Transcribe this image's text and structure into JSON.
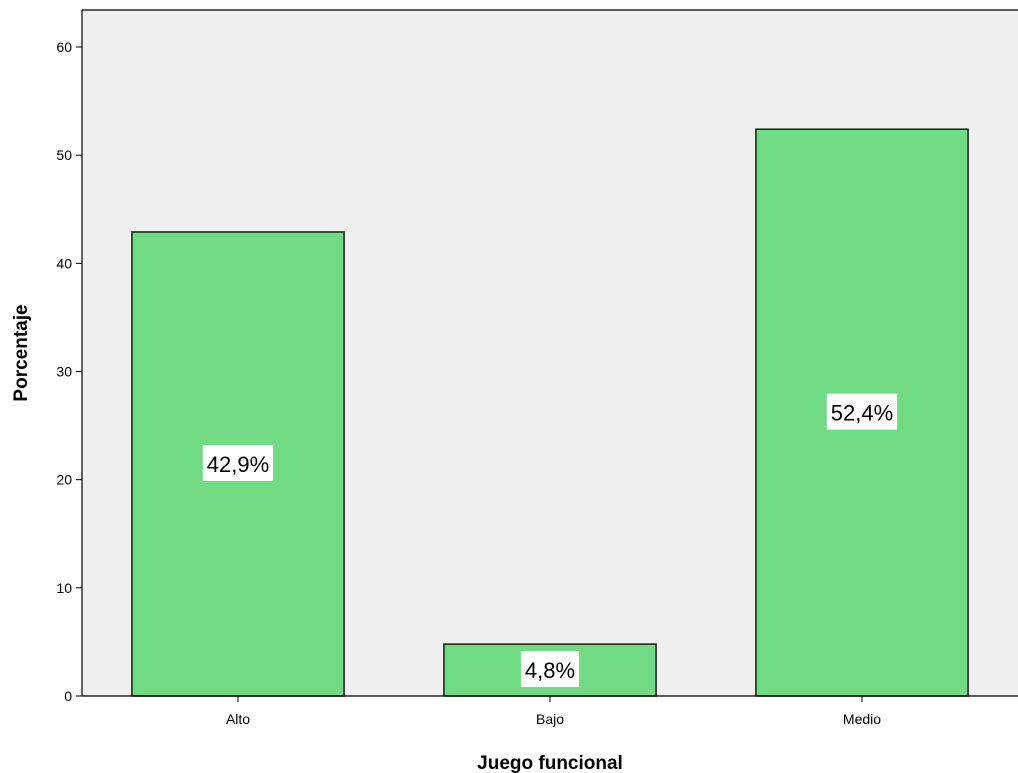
{
  "chart_data": {
    "type": "bar",
    "categories": [
      "Alto",
      "Bajo",
      "Medio"
    ],
    "values": [
      42.9,
      4.8,
      52.4
    ],
    "data_labels": [
      "42,9%",
      "4,8%",
      "52,4%"
    ],
    "xlabel": "Juego funcional",
    "ylabel": "Porcentaje",
    "ylim": [
      0,
      60
    ],
    "yticks": [
      0,
      10,
      20,
      30,
      40,
      50,
      60
    ],
    "ytick_labels": [
      "0",
      "10",
      "20",
      "30",
      "40",
      "50",
      "60"
    ],
    "grid": false,
    "legend": "none",
    "colors": {
      "bar_fill": "#70db82",
      "bar_stroke": "#1a1a1a",
      "plot_background": "#f0f0f0",
      "label_background": "#ffffff"
    }
  }
}
